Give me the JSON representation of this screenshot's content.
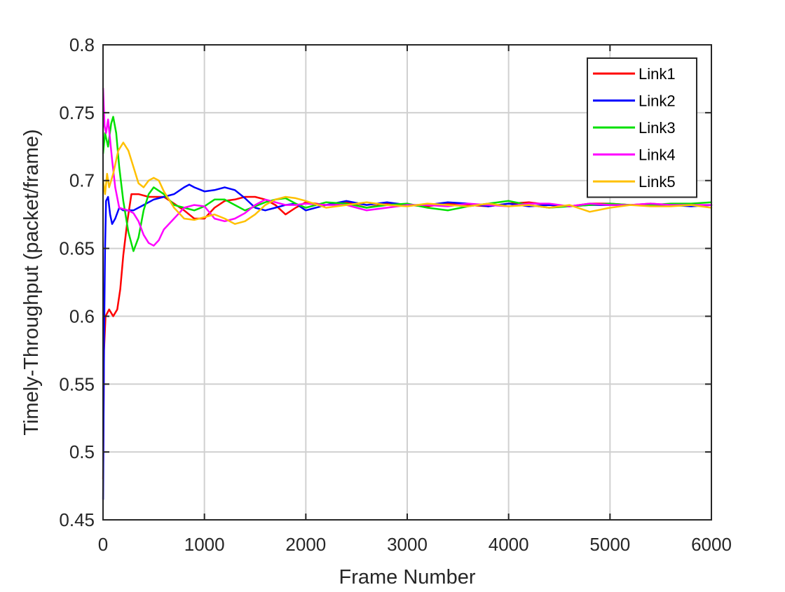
{
  "chart_data": {
    "type": "line",
    "title": "",
    "xlabel": "Frame Number",
    "ylabel": "Timely-Throughput (packet/frame)",
    "xlim": [
      0,
      6000
    ],
    "ylim": [
      0.45,
      0.8
    ],
    "xticks": [
      0,
      1000,
      2000,
      3000,
      4000,
      5000,
      6000
    ],
    "xtick_labels": [
      "0",
      "1000",
      "2000",
      "3000",
      "4000",
      "5000",
      "6000"
    ],
    "yticks": [
      0.45,
      0.5,
      0.55,
      0.6,
      0.65,
      0.7,
      0.75,
      0.8
    ],
    "ytick_labels": [
      "0.45",
      "0.5",
      "0.55",
      "0.6",
      "0.65",
      "0.7",
      "0.75",
      "0.8"
    ],
    "grid": true,
    "legend_position": "top-right",
    "series": [
      {
        "name": "Link1",
        "color": "#ff0000",
        "points": [
          [
            1,
            0.48
          ],
          [
            10,
            0.575
          ],
          [
            25,
            0.6
          ],
          [
            60,
            0.605
          ],
          [
            100,
            0.6
          ],
          [
            140,
            0.605
          ],
          [
            170,
            0.62
          ],
          [
            200,
            0.645
          ],
          [
            240,
            0.67
          ],
          [
            280,
            0.69
          ],
          [
            350,
            0.69
          ],
          [
            450,
            0.688
          ],
          [
            600,
            0.688
          ],
          [
            700,
            0.683
          ],
          [
            800,
            0.678
          ],
          [
            900,
            0.672
          ],
          [
            1000,
            0.672
          ],
          [
            1100,
            0.68
          ],
          [
            1200,
            0.685
          ],
          [
            1300,
            0.686
          ],
          [
            1400,
            0.688
          ],
          [
            1500,
            0.688
          ],
          [
            1600,
            0.686
          ],
          [
            1700,
            0.682
          ],
          [
            1800,
            0.675
          ],
          [
            1900,
            0.68
          ],
          [
            2000,
            0.684
          ],
          [
            2200,
            0.682
          ],
          [
            2400,
            0.684
          ],
          [
            2600,
            0.68
          ],
          [
            2800,
            0.683
          ],
          [
            3000,
            0.682
          ],
          [
            3200,
            0.681
          ],
          [
            3400,
            0.683
          ],
          [
            3600,
            0.682
          ],
          [
            3800,
            0.681
          ],
          [
            4000,
            0.683
          ],
          [
            4200,
            0.684
          ],
          [
            4400,
            0.682
          ],
          [
            4600,
            0.681
          ],
          [
            4800,
            0.683
          ],
          [
            5000,
            0.683
          ],
          [
            5200,
            0.682
          ],
          [
            5400,
            0.683
          ],
          [
            5600,
            0.682
          ],
          [
            5800,
            0.682
          ],
          [
            6000,
            0.682
          ]
        ]
      },
      {
        "name": "Link2",
        "color": "#0000ff",
        "points": [
          [
            1,
            0.465
          ],
          [
            10,
            0.58
          ],
          [
            20,
            0.65
          ],
          [
            30,
            0.685
          ],
          [
            50,
            0.688
          ],
          [
            70,
            0.675
          ],
          [
            90,
            0.668
          ],
          [
            120,
            0.672
          ],
          [
            160,
            0.68
          ],
          [
            200,
            0.678
          ],
          [
            300,
            0.678
          ],
          [
            400,
            0.682
          ],
          [
            500,
            0.686
          ],
          [
            600,
            0.688
          ],
          [
            700,
            0.69
          ],
          [
            800,
            0.695
          ],
          [
            850,
            0.697
          ],
          [
            900,
            0.695
          ],
          [
            1000,
            0.692
          ],
          [
            1100,
            0.693
          ],
          [
            1200,
            0.695
          ],
          [
            1300,
            0.693
          ],
          [
            1400,
            0.687
          ],
          [
            1500,
            0.68
          ],
          [
            1600,
            0.678
          ],
          [
            1700,
            0.68
          ],
          [
            1800,
            0.682
          ],
          [
            1900,
            0.683
          ],
          [
            2000,
            0.678
          ],
          [
            2200,
            0.682
          ],
          [
            2400,
            0.685
          ],
          [
            2600,
            0.682
          ],
          [
            2800,
            0.684
          ],
          [
            3000,
            0.682
          ],
          [
            3200,
            0.682
          ],
          [
            3400,
            0.684
          ],
          [
            3600,
            0.683
          ],
          [
            3800,
            0.681
          ],
          [
            4000,
            0.683
          ],
          [
            4200,
            0.681
          ],
          [
            4400,
            0.682
          ],
          [
            4600,
            0.681
          ],
          [
            4800,
            0.682
          ],
          [
            5000,
            0.682
          ],
          [
            5200,
            0.682
          ],
          [
            5400,
            0.682
          ],
          [
            5600,
            0.682
          ],
          [
            5800,
            0.681
          ],
          [
            6000,
            0.682
          ]
        ]
      },
      {
        "name": "Link3",
        "color": "#00e000",
        "points": [
          [
            1,
            0.72
          ],
          [
            20,
            0.735
          ],
          [
            50,
            0.725
          ],
          [
            80,
            0.742
          ],
          [
            100,
            0.747
          ],
          [
            130,
            0.735
          ],
          [
            160,
            0.71
          ],
          [
            200,
            0.685
          ],
          [
            250,
            0.662
          ],
          [
            300,
            0.648
          ],
          [
            350,
            0.658
          ],
          [
            400,
            0.678
          ],
          [
            450,
            0.69
          ],
          [
            500,
            0.695
          ],
          [
            600,
            0.69
          ],
          [
            700,
            0.682
          ],
          [
            800,
            0.68
          ],
          [
            900,
            0.678
          ],
          [
            1000,
            0.681
          ],
          [
            1100,
            0.686
          ],
          [
            1200,
            0.686
          ],
          [
            1300,
            0.682
          ],
          [
            1400,
            0.678
          ],
          [
            1500,
            0.681
          ],
          [
            1600,
            0.684
          ],
          [
            1700,
            0.686
          ],
          [
            1800,
            0.687
          ],
          [
            1900,
            0.683
          ],
          [
            2000,
            0.68
          ],
          [
            2200,
            0.684
          ],
          [
            2400,
            0.683
          ],
          [
            2600,
            0.68
          ],
          [
            2800,
            0.682
          ],
          [
            3000,
            0.683
          ],
          [
            3200,
            0.68
          ],
          [
            3400,
            0.678
          ],
          [
            3600,
            0.681
          ],
          [
            3800,
            0.683
          ],
          [
            4000,
            0.685
          ],
          [
            4200,
            0.682
          ],
          [
            4400,
            0.68
          ],
          [
            4600,
            0.681
          ],
          [
            4800,
            0.682
          ],
          [
            5000,
            0.683
          ],
          [
            5200,
            0.682
          ],
          [
            5400,
            0.682
          ],
          [
            5600,
            0.683
          ],
          [
            5800,
            0.683
          ],
          [
            6000,
            0.684
          ]
        ]
      },
      {
        "name": "Link4",
        "color": "#ff00ff",
        "points": [
          [
            1,
            0.768
          ],
          [
            15,
            0.74
          ],
          [
            30,
            0.735
          ],
          [
            50,
            0.745
          ],
          [
            70,
            0.73
          ],
          [
            90,
            0.715
          ],
          [
            120,
            0.695
          ],
          [
            160,
            0.68
          ],
          [
            200,
            0.679
          ],
          [
            250,
            0.678
          ],
          [
            300,
            0.676
          ],
          [
            350,
            0.67
          ],
          [
            400,
            0.66
          ],
          [
            450,
            0.654
          ],
          [
            500,
            0.652
          ],
          [
            550,
            0.656
          ],
          [
            600,
            0.664
          ],
          [
            700,
            0.672
          ],
          [
            800,
            0.68
          ],
          [
            900,
            0.682
          ],
          [
            1000,
            0.681
          ],
          [
            1100,
            0.672
          ],
          [
            1200,
            0.67
          ],
          [
            1300,
            0.672
          ],
          [
            1400,
            0.676
          ],
          [
            1500,
            0.682
          ],
          [
            1600,
            0.686
          ],
          [
            1700,
            0.684
          ],
          [
            1800,
            0.682
          ],
          [
            1900,
            0.682
          ],
          [
            2000,
            0.683
          ],
          [
            2200,
            0.682
          ],
          [
            2400,
            0.682
          ],
          [
            2600,
            0.678
          ],
          [
            2800,
            0.68
          ],
          [
            3000,
            0.682
          ],
          [
            3200,
            0.682
          ],
          [
            3400,
            0.681
          ],
          [
            3600,
            0.683
          ],
          [
            3800,
            0.682
          ],
          [
            4000,
            0.681
          ],
          [
            4200,
            0.683
          ],
          [
            4400,
            0.683
          ],
          [
            4600,
            0.681
          ],
          [
            4800,
            0.683
          ],
          [
            5000,
            0.682
          ],
          [
            5200,
            0.682
          ],
          [
            5400,
            0.683
          ],
          [
            5600,
            0.682
          ],
          [
            5800,
            0.682
          ],
          [
            6000,
            0.682
          ]
        ]
      },
      {
        "name": "Link5",
        "color": "#ffc000",
        "points": [
          [
            1,
            0.7
          ],
          [
            20,
            0.69
          ],
          [
            40,
            0.705
          ],
          [
            60,
            0.695
          ],
          [
            100,
            0.705
          ],
          [
            150,
            0.722
          ],
          [
            200,
            0.728
          ],
          [
            250,
            0.722
          ],
          [
            300,
            0.71
          ],
          [
            350,
            0.698
          ],
          [
            400,
            0.695
          ],
          [
            450,
            0.7
          ],
          [
            500,
            0.702
          ],
          [
            550,
            0.7
          ],
          [
            600,
            0.692
          ],
          [
            700,
            0.68
          ],
          [
            800,
            0.672
          ],
          [
            900,
            0.671
          ],
          [
            1000,
            0.673
          ],
          [
            1100,
            0.675
          ],
          [
            1200,
            0.672
          ],
          [
            1300,
            0.668
          ],
          [
            1400,
            0.67
          ],
          [
            1500,
            0.675
          ],
          [
            1600,
            0.682
          ],
          [
            1700,
            0.686
          ],
          [
            1800,
            0.688
          ],
          [
            1900,
            0.687
          ],
          [
            2000,
            0.685
          ],
          [
            2200,
            0.68
          ],
          [
            2400,
            0.682
          ],
          [
            2600,
            0.684
          ],
          [
            2800,
            0.682
          ],
          [
            3000,
            0.681
          ],
          [
            3200,
            0.683
          ],
          [
            3400,
            0.682
          ],
          [
            3600,
            0.681
          ],
          [
            3800,
            0.683
          ],
          [
            4000,
            0.681
          ],
          [
            4200,
            0.682
          ],
          [
            4400,
            0.68
          ],
          [
            4600,
            0.682
          ],
          [
            4800,
            0.677
          ],
          [
            5000,
            0.68
          ],
          [
            5200,
            0.682
          ],
          [
            5400,
            0.681
          ],
          [
            5600,
            0.681
          ],
          [
            5800,
            0.682
          ],
          [
            6000,
            0.68
          ]
        ]
      }
    ]
  }
}
